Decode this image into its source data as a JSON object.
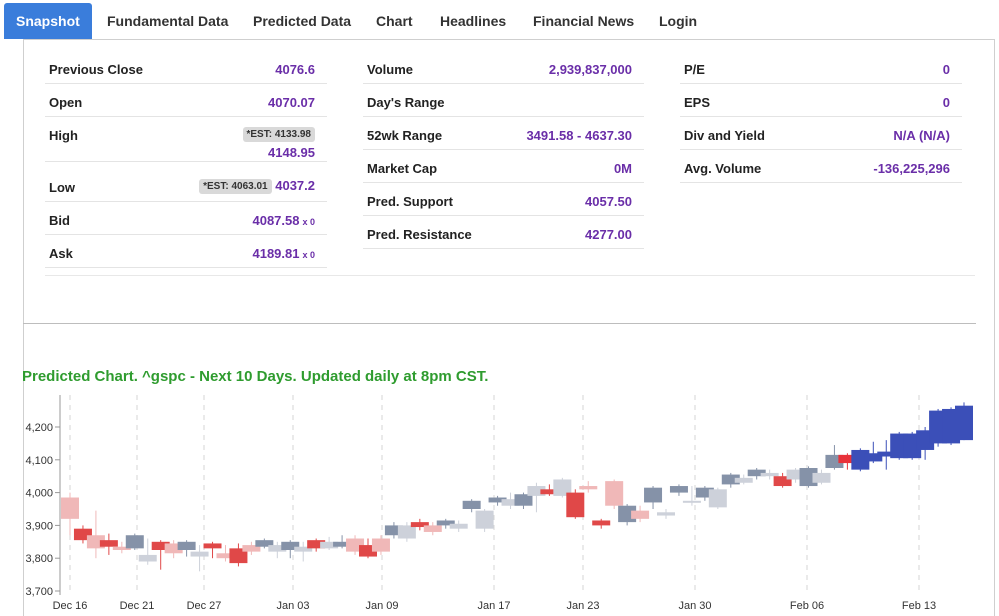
{
  "tabs": [
    "Snapshot",
    "Fundamental Data",
    "Predicted Data",
    "Chart",
    "Headlines",
    "Financial News",
    "Login"
  ],
  "col1": [
    {
      "label": "Previous Close",
      "value": "4076.6"
    },
    {
      "label": "Open",
      "value": "4070.07"
    },
    {
      "label": "High",
      "est": "*EST: 4133.98",
      "value": "4148.95"
    },
    {
      "label": "Low",
      "est": "*EST: 4063.01",
      "value": "4037.2"
    },
    {
      "label": "Bid",
      "value": "4087.58",
      "sub": "x 0"
    },
    {
      "label": "Ask",
      "value": "4189.81",
      "sub": "x 0"
    }
  ],
  "col2": [
    {
      "label": "Volume",
      "value": "2,939,837,000"
    },
    {
      "label": "Day's Range",
      "value": ""
    },
    {
      "label": "52wk Range",
      "value": "3491.58 - 4637.30"
    },
    {
      "label": "Market Cap",
      "value": "0M"
    },
    {
      "label": "Pred. Support",
      "value": "4057.50"
    },
    {
      "label": "Pred. Resistance",
      "value": "4277.00"
    }
  ],
  "col3": [
    {
      "label": "P/E",
      "value": "0"
    },
    {
      "label": "EPS",
      "value": "0"
    },
    {
      "label": "Div and Yield",
      "value": "N/A (N/A)"
    },
    {
      "label": "Avg. Volume",
      "value": "-136,225,296"
    }
  ],
  "chart_title": "Predicted Chart. ^gspc - Next 10 Days. Updated daily at 8pm CST.",
  "chart_data": {
    "type": "candlestick",
    "y_ticks": [
      "4,200",
      "4,100",
      "4,000",
      "3,900",
      "3,800",
      "3,700"
    ],
    "ylim": [
      3700,
      4300
    ],
    "x_ticks": [
      "Dec 16",
      "Dec 21",
      "Dec 27",
      "Jan 03",
      "Jan 09",
      "Jan 17",
      "Jan 23",
      "Jan 30",
      "Feb 06",
      "Feb 13"
    ],
    "colors": {
      "down_actual": "#e04848",
      "down_pred": "#f0b8b8",
      "up_actual": "#8592a8",
      "up_pred": "#cdd1da",
      "forecast_up": "#3b4fb8",
      "forecast_down": "#e8323a"
    },
    "candles": [
      {
        "o": 3985,
        "c": 3920,
        "h": 4000,
        "l": 3870,
        "k": "down_pred"
      },
      {
        "o": 3890,
        "c": 3855,
        "h": 3900,
        "l": 3845,
        "k": "down_actual"
      },
      {
        "o": 3870,
        "c": 3830,
        "h": 3945,
        "l": 3800,
        "k": "down_pred"
      },
      {
        "o": 3855,
        "c": 3835,
        "h": 3875,
        "l": 3810,
        "k": "down_actual"
      },
      {
        "o": 3835,
        "c": 3825,
        "h": 3850,
        "l": 3815,
        "k": "down_pred"
      },
      {
        "o": 3830,
        "c": 3870,
        "h": 3875,
        "l": 3825,
        "k": "up_actual"
      },
      {
        "o": 3790,
        "c": 3810,
        "h": 3860,
        "l": 3780,
        "k": "up_pred"
      },
      {
        "o": 3850,
        "c": 3825,
        "h": 3855,
        "l": 3765,
        "k": "down_actual"
      },
      {
        "o": 3845,
        "c": 3815,
        "h": 3855,
        "l": 3800,
        "k": "down_pred"
      },
      {
        "o": 3825,
        "c": 3850,
        "h": 3855,
        "l": 3805,
        "k": "up_actual"
      },
      {
        "o": 3820,
        "c": 3805,
        "h": 3840,
        "l": 3760,
        "k": "up_pred"
      },
      {
        "o": 3845,
        "c": 3830,
        "h": 3850,
        "l": 3800,
        "k": "down_actual"
      },
      {
        "o": 3815,
        "c": 3800,
        "h": 3840,
        "l": 3790,
        "k": "down_pred"
      },
      {
        "o": 3830,
        "c": 3785,
        "h": 3845,
        "l": 3775,
        "k": "down_actual"
      },
      {
        "o": 3820,
        "c": 3840,
        "h": 3850,
        "l": 3810,
        "k": "down_pred"
      },
      {
        "o": 3835,
        "c": 3855,
        "h": 3860,
        "l": 3830,
        "k": "up_actual"
      },
      {
        "o": 3820,
        "c": 3840,
        "h": 3850,
        "l": 3800,
        "k": "up_pred"
      },
      {
        "o": 3825,
        "c": 3850,
        "h": 3855,
        "l": 3800,
        "k": "up_actual"
      },
      {
        "o": 3835,
        "c": 3820,
        "h": 3850,
        "l": 3790,
        "k": "up_pred"
      },
      {
        "o": 3855,
        "c": 3830,
        "h": 3860,
        "l": 3820,
        "k": "down_actual"
      },
      {
        "o": 3830,
        "c": 3850,
        "h": 3865,
        "l": 3825,
        "k": "up_pred"
      },
      {
        "o": 3835,
        "c": 3850,
        "h": 3870,
        "l": 3830,
        "k": "up_actual"
      },
      {
        "o": 3860,
        "c": 3820,
        "h": 3870,
        "l": 3810,
        "k": "down_pred"
      },
      {
        "o": 3840,
        "c": 3805,
        "h": 3860,
        "l": 3800,
        "k": "down_actual"
      },
      {
        "o": 3860,
        "c": 3820,
        "h": 3870,
        "l": 3810,
        "k": "down_pred"
      },
      {
        "o": 3870,
        "c": 3900,
        "h": 3910,
        "l": 3860,
        "k": "up_actual"
      },
      {
        "o": 3860,
        "c": 3900,
        "h": 3910,
        "l": 3850,
        "k": "up_pred"
      },
      {
        "o": 3910,
        "c": 3895,
        "h": 3920,
        "l": 3885,
        "k": "down_actual"
      },
      {
        "o": 3900,
        "c": 3880,
        "h": 3910,
        "l": 3870,
        "k": "down_pred"
      },
      {
        "o": 3900,
        "c": 3915,
        "h": 3920,
        "l": 3890,
        "k": "up_actual"
      },
      {
        "o": 3905,
        "c": 3890,
        "h": 3915,
        "l": 3880,
        "k": "up_pred"
      },
      {
        "o": 3950,
        "c": 3975,
        "h": 3980,
        "l": 3940,
        "k": "up_actual"
      },
      {
        "o": 3890,
        "c": 3945,
        "h": 3950,
        "l": 3880,
        "k": "up_pred"
      },
      {
        "o": 3970,
        "c": 3985,
        "h": 3990,
        "l": 3960,
        "k": "up_actual"
      },
      {
        "o": 3960,
        "c": 3980,
        "h": 4000,
        "l": 3950,
        "k": "up_pred"
      },
      {
        "o": 3960,
        "c": 3995,
        "h": 4000,
        "l": 3950,
        "k": "up_actual"
      },
      {
        "o": 3990,
        "c": 4020,
        "h": 4030,
        "l": 3940,
        "k": "up_pred"
      },
      {
        "o": 4010,
        "c": 3995,
        "h": 4025,
        "l": 3990,
        "k": "down_actual"
      },
      {
        "o": 3990,
        "c": 4040,
        "h": 4045,
        "l": 3985,
        "k": "up_pred"
      },
      {
        "o": 4000,
        "c": 3925,
        "h": 4010,
        "l": 3920,
        "k": "down_actual"
      },
      {
        "o": 4020,
        "c": 4010,
        "h": 4035,
        "l": 4000,
        "k": "down_pred"
      },
      {
        "o": 3915,
        "c": 3900,
        "h": 3920,
        "l": 3890,
        "k": "down_actual"
      },
      {
        "o": 4035,
        "c": 3960,
        "h": 4040,
        "l": 3950,
        "k": "down_pred"
      },
      {
        "o": 3910,
        "c": 3960,
        "h": 3965,
        "l": 3900,
        "k": "up_actual"
      },
      {
        "o": 3920,
        "c": 3945,
        "h": 3960,
        "l": 3910,
        "k": "down_pred"
      },
      {
        "o": 3970,
        "c": 4015,
        "h": 4020,
        "l": 3950,
        "k": "up_actual"
      },
      {
        "o": 3930,
        "c": 3940,
        "h": 3950,
        "l": 3920,
        "k": "up_pred"
      },
      {
        "o": 4000,
        "c": 4020,
        "h": 4025,
        "l": 3990,
        "k": "up_actual"
      },
      {
        "o": 3970,
        "c": 3975,
        "h": 4020,
        "l": 3960,
        "k": "up_pred"
      },
      {
        "o": 3985,
        "c": 4015,
        "h": 4020,
        "l": 3975,
        "k": "up_actual"
      },
      {
        "o": 3955,
        "c": 4010,
        "h": 4015,
        "l": 3950,
        "k": "up_pred"
      },
      {
        "o": 4025,
        "c": 4055,
        "h": 4060,
        "l": 4015,
        "k": "up_actual"
      },
      {
        "o": 4030,
        "c": 4045,
        "h": 4055,
        "l": 4025,
        "k": "up_pred"
      },
      {
        "o": 4050,
        "c": 4070,
        "h": 4075,
        "l": 4040,
        "k": "up_actual"
      },
      {
        "o": 4050,
        "c": 4060,
        "h": 4070,
        "l": 4040,
        "k": "up_pred"
      },
      {
        "o": 4050,
        "c": 4020,
        "h": 4060,
        "l": 4015,
        "k": "down_actual"
      },
      {
        "o": 4040,
        "c": 4070,
        "h": 4075,
        "l": 4030,
        "k": "up_pred"
      },
      {
        "o": 4020,
        "c": 4075,
        "h": 4080,
        "l": 4015,
        "k": "up_actual"
      },
      {
        "o": 4030,
        "c": 4060,
        "h": 4070,
        "l": 4025,
        "k": "up_pred"
      },
      {
        "o": 4075,
        "c": 4115,
        "h": 4145,
        "l": 4070,
        "k": "up_actual"
      },
      {
        "o": 4115,
        "c": 4090,
        "h": 4120,
        "l": 4070,
        "k": "forecast_down"
      },
      {
        "o": 4070,
        "c": 4130,
        "h": 4135,
        "l": 4065,
        "k": "forecast_up"
      },
      {
        "o": 4095,
        "c": 4120,
        "h": 4155,
        "l": 4090,
        "k": "forecast_up"
      },
      {
        "o": 4110,
        "c": 4125,
        "h": 4160,
        "l": 4070,
        "k": "forecast_up"
      },
      {
        "o": 4105,
        "c": 4180,
        "h": 4185,
        "l": 4100,
        "k": "forecast_up"
      },
      {
        "o": 4105,
        "c": 4180,
        "h": 4185,
        "l": 4100,
        "k": "forecast_up"
      },
      {
        "o": 4130,
        "c": 4190,
        "h": 4200,
        "l": 4100,
        "k": "forecast_up"
      },
      {
        "o": 4150,
        "c": 4250,
        "h": 4255,
        "l": 4140,
        "k": "forecast_up"
      },
      {
        "o": 4150,
        "c": 4255,
        "h": 4260,
        "l": 4145,
        "k": "forecast_up"
      },
      {
        "o": 4160,
        "c": 4265,
        "h": 4275,
        "l": 4160,
        "k": "forecast_up"
      }
    ]
  }
}
